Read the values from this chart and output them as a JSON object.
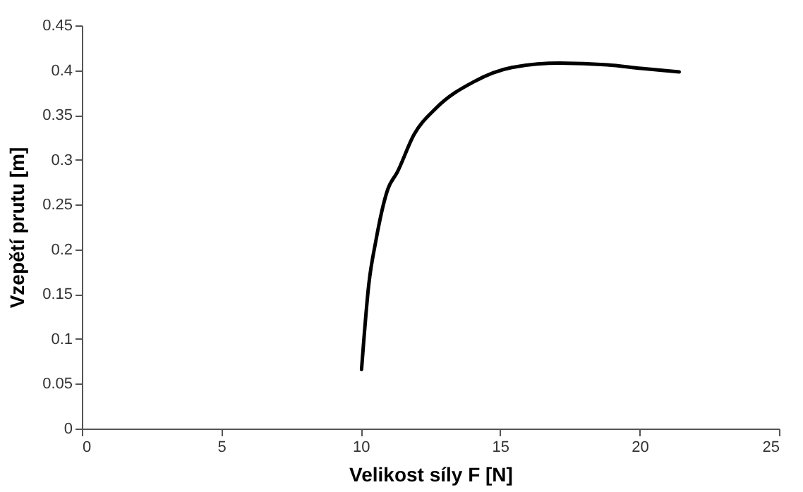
{
  "chart_data": {
    "type": "line",
    "xlabel": "Velikost síly F [N]",
    "ylabel": "Vzepětí prutu [m]",
    "x": [
      10.03,
      10.29,
      10.54,
      10.97,
      11.31,
      11.91,
      12.68,
      14.05,
      15.42,
      17.13,
      18.85,
      20.05,
      21.42
    ],
    "series": [
      {
        "color": "#000000",
        "values": [
          0.066,
          0.161,
          0.209,
          0.267,
          0.286,
          0.328,
          0.357,
          0.387,
          0.403,
          0.408,
          0.406,
          0.402,
          0.398
        ]
      }
    ],
    "xlim": [
      0,
      25
    ],
    "xticks": [
      0,
      5,
      10,
      15,
      20,
      25
    ],
    "ylim": [
      0,
      0.45
    ],
    "yticks": [
      0,
      0.05,
      0.1,
      0.15,
      0.2,
      0.25,
      0.3,
      0.35,
      0.4,
      0.45
    ],
    "grid": false,
    "marker": "none",
    "line_style": "solid"
  }
}
